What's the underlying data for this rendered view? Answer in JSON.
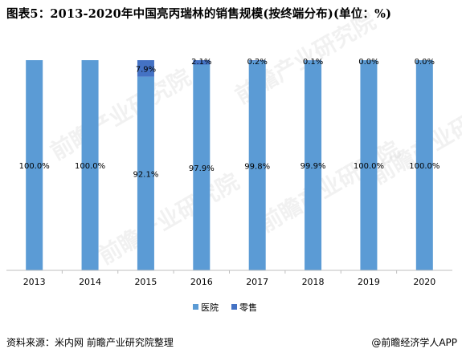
{
  "title": "图表5：2013-2020年中国亮丙瑞林的销售规模(按终端分布)(单位：%)",
  "chart_data": {
    "type": "bar",
    "stacked": true,
    "categories": [
      "2013",
      "2014",
      "2015",
      "2016",
      "2017",
      "2018",
      "2019",
      "2020"
    ],
    "series": [
      {
        "name": "医院",
        "values": [
          100.0,
          100.0,
          92.1,
          97.9,
          99.8,
          99.9,
          100.0,
          100.0
        ],
        "labels": [
          "100.0%",
          "100.0%",
          "92.1%",
          "97.9%",
          "99.8%",
          "99.9%",
          "100.0%",
          "100.0%"
        ],
        "color": "#5b9bd5"
      },
      {
        "name": "零售",
        "values": [
          0,
          0,
          7.9,
          2.1,
          0.2,
          0.1,
          0.0,
          0.0
        ],
        "labels": [
          "",
          "",
          "7.9%",
          "2.1%",
          "0.2%",
          "0.1%",
          "0.0%",
          "0.0%"
        ],
        "color": "#4472c4"
      }
    ],
    "ylim": [
      0,
      100
    ],
    "legend": "bottom",
    "grid": false
  },
  "watermark": "前瞻产业研究院",
  "footer": {
    "source": "资料来源：米内网 前瞻产业研究院整理",
    "brand": "@前瞻经济学人APP"
  }
}
